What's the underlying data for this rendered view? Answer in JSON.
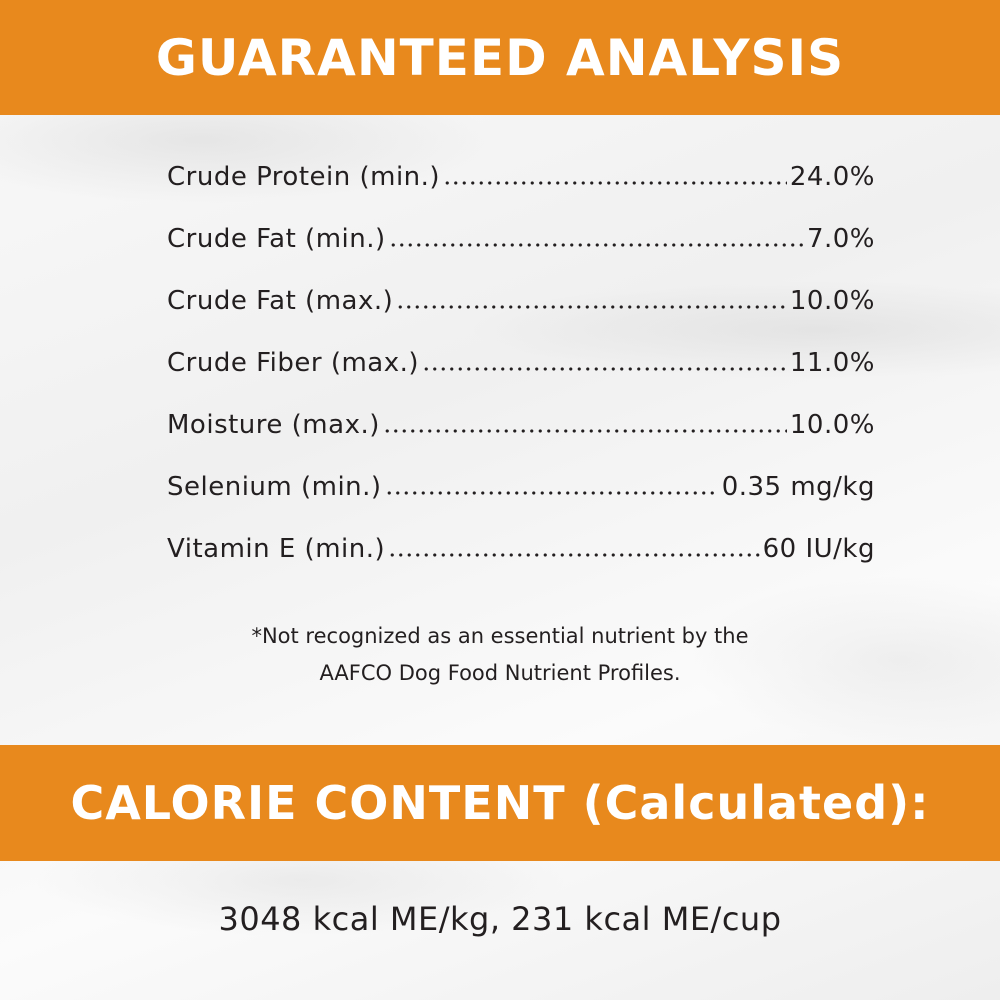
{
  "header": {
    "title": "GUARANTEED ANALYSIS"
  },
  "analysis": {
    "rows": [
      {
        "label": "Crude Protein (min.)",
        "value": "24.0%"
      },
      {
        "label": "Crude Fat (min.)",
        "value": "7.0%"
      },
      {
        "label": "Crude Fat (max.)",
        "value": "10.0%"
      },
      {
        "label": "Crude Fiber (max.)",
        "value": "11.0%"
      },
      {
        "label": "Moisture (max.)",
        "value": "10.0%"
      },
      {
        "label": "Selenium (min.)",
        "value": "0.35 mg/kg"
      },
      {
        "label": "Vitamin E (min.)",
        "value": "60 IU/kg"
      }
    ],
    "footnote": [
      "*Not recognized as an essential nutrient by the",
      "AAFCO Dog Food Nutrient Profiles."
    ]
  },
  "calorie": {
    "title": "CALORIE CONTENT (Calculated):",
    "text": "3048 kcal ME/kg, 231 kcal ME/cup"
  }
}
